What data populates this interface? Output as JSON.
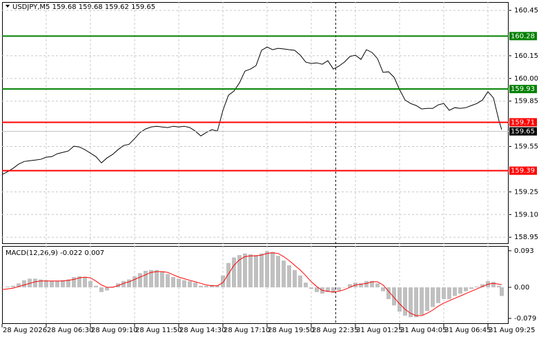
{
  "chart_data": [
    {
      "type": "line",
      "title": "USDJPY,M5  159.68 159.68 159.62 159.65",
      "x": [
        0,
        4,
        8,
        12,
        16,
        20,
        24,
        28,
        32,
        36,
        40,
        44,
        48,
        52,
        56,
        60,
        64,
        68,
        72,
        76,
        80,
        84,
        88,
        92,
        96,
        100,
        104,
        108,
        112,
        116,
        120,
        124,
        128,
        132,
        136,
        140,
        144,
        148,
        152,
        156,
        160,
        164,
        168,
        172,
        176,
        180,
        184,
        188,
        192,
        196,
        200,
        204,
        208,
        212,
        216,
        220,
        224,
        228,
        232,
        236,
        240,
        244,
        248,
        252,
        256,
        260,
        264,
        268,
        272,
        276,
        280,
        284,
        288,
        292,
        296,
        300,
        304,
        308,
        312,
        316,
        320,
        324,
        328,
        332,
        336,
        340,
        344,
        348,
        352,
        356,
        360,
        362
      ],
      "xlim": [
        0,
        367
      ],
      "xticks": [
        {
          "value": 0,
          "label": "28 Aug 2026"
        },
        {
          "value": 32,
          "label": "28 Aug 06:30"
        },
        {
          "value": 64,
          "label": "28 Aug 09:10"
        },
        {
          "value": 96,
          "label": "28 Aug 11:50"
        },
        {
          "value": 128,
          "label": "28 Aug 14:30"
        },
        {
          "value": 160,
          "label": "28 Aug 17:10"
        },
        {
          "value": 192,
          "label": "28 Aug 19:50"
        },
        {
          "value": 224,
          "label": "28 Aug 22:35"
        },
        {
          "value": 256,
          "label": "31 Aug 01:25"
        },
        {
          "value": 288,
          "label": "31 Aug 04:05"
        },
        {
          "value": 320,
          "label": "31 Aug 06:45"
        },
        {
          "value": 352,
          "label": "31 Aug 09:25"
        }
      ],
      "ylim": [
        158.91,
        160.505
      ],
      "yticks": [
        160.45,
        160.15,
        {
          "value": 160,
          "label": "160.00"
        },
        159.85,
        159.55,
        159.25,
        {
          "value": 159.1,
          "label": "159.10"
        },
        158.95
      ],
      "grid": true,
      "series": [
        {
          "color": "#000000",
          "values": [
            159.365,
            159.383,
            159.406,
            159.433,
            159.451,
            159.456,
            159.46,
            159.465,
            159.479,
            159.483,
            159.502,
            159.511,
            159.52,
            159.552,
            159.547,
            159.529,
            159.506,
            159.483,
            159.442,
            159.474,
            159.497,
            159.529,
            159.556,
            159.565,
            159.602,
            159.643,
            159.666,
            159.679,
            159.684,
            159.679,
            159.675,
            159.684,
            159.679,
            159.684,
            159.675,
            159.652,
            159.62,
            159.643,
            159.661,
            159.652,
            159.789,
            159.889,
            159.916,
            159.971,
            160.049,
            160.062,
            160.085,
            160.186,
            160.208,
            160.19,
            160.199,
            160.195,
            160.19,
            160.186,
            160.154,
            160.108,
            160.099,
            160.103,
            160.094,
            160.117,
            160.062,
            160.081,
            160.108,
            160.145,
            160.154,
            160.126,
            160.19,
            160.172,
            160.131,
            160.04,
            160.044,
            160.008,
            159.926,
            159.857,
            159.834,
            159.821,
            159.798,
            159.802,
            159.802,
            159.825,
            159.834,
            159.789,
            159.807,
            159.802,
            159.807,
            159.821,
            159.834,
            159.857,
            159.912,
            159.871,
            159.72,
            159.661
          ]
        }
      ],
      "levels": [
        {
          "value": 160.28,
          "color": "#008000"
        },
        {
          "value": 159.93,
          "color": "#008000"
        },
        {
          "value": 159.71,
          "color": "#ff0000"
        },
        {
          "value": 159.39,
          "color": "#ff0000"
        },
        {
          "value": 159.65,
          "color": "#000000"
        }
      ]
    },
    {
      "type": "macd",
      "title": "MACD(12,26,9) -0.022 0.007",
      "ylim": [
        -0.093,
        0.105
      ],
      "yticks": [
        0.093,
        {
          "value": 0,
          "label": "0.00"
        },
        -0.079
      ],
      "series": [
        {
          "kind": "bar",
          "color": "#c0c0c0",
          "values": [
            0,
            0.002,
            0.004,
            0.01,
            0.018,
            0.022,
            0.022,
            0.02,
            0.018,
            0.016,
            0.016,
            0.018,
            0.02,
            0.026,
            0.028,
            0.026,
            0.016,
            0.004,
            -0.012,
            -0.008,
            0.002,
            0.01,
            0.016,
            0.02,
            0.028,
            0.036,
            0.042,
            0.044,
            0.044,
            0.04,
            0.034,
            0.026,
            0.022,
            0.018,
            0.016,
            0.012,
            0.004,
            0.004,
            0.006,
            0.004,
            0.03,
            0.062,
            0.076,
            0.082,
            0.086,
            0.084,
            0.082,
            0.086,
            0.092,
            0.09,
            0.08,
            0.068,
            0.056,
            0.044,
            0.03,
            0.012,
            -0.004,
            -0.012,
            -0.016,
            -0.012,
            -0.014,
            -0.008,
            0,
            0.008,
            0.012,
            0.01,
            0.016,
            0.016,
            0.01,
            -0.01,
            -0.03,
            -0.046,
            -0.062,
            -0.072,
            -0.076,
            -0.076,
            -0.07,
            -0.06,
            -0.05,
            -0.04,
            -0.03,
            -0.03,
            -0.022,
            -0.016,
            -0.01,
            -0.004,
            0.002,
            0.008,
            0.016,
            0.014,
            0.004,
            -0.022
          ]
        },
        {
          "kind": "line",
          "color": "#ff0000",
          "values": [
            -0.006,
            -0.004,
            -0.002,
            0.002,
            0.006,
            0.01,
            0.014,
            0.016,
            0.016,
            0.016,
            0.016,
            0.016,
            0.018,
            0.02,
            0.024,
            0.026,
            0.024,
            0.016,
            0.006,
            0,
            0,
            0.004,
            0.01,
            0.014,
            0.02,
            0.026,
            0.032,
            0.038,
            0.04,
            0.04,
            0.038,
            0.032,
            0.026,
            0.022,
            0.018,
            0.014,
            0.01,
            0.006,
            0.004,
            0.004,
            0.012,
            0.034,
            0.056,
            0.07,
            0.078,
            0.08,
            0.08,
            0.082,
            0.086,
            0.088,
            0.086,
            0.078,
            0.068,
            0.056,
            0.044,
            0.03,
            0.014,
            0.002,
            -0.008,
            -0.01,
            -0.012,
            -0.01,
            -0.006,
            0,
            0.006,
            0.008,
            0.01,
            0.014,
            0.014,
            0.006,
            -0.01,
            -0.026,
            -0.042,
            -0.056,
            -0.066,
            -0.072,
            -0.072,
            -0.066,
            -0.058,
            -0.048,
            -0.04,
            -0.034,
            -0.028,
            -0.022,
            -0.016,
            -0.01,
            -0.004,
            0.002,
            0.008,
            0.01,
            0.008,
            0.007
          ]
        }
      ]
    }
  ]
}
